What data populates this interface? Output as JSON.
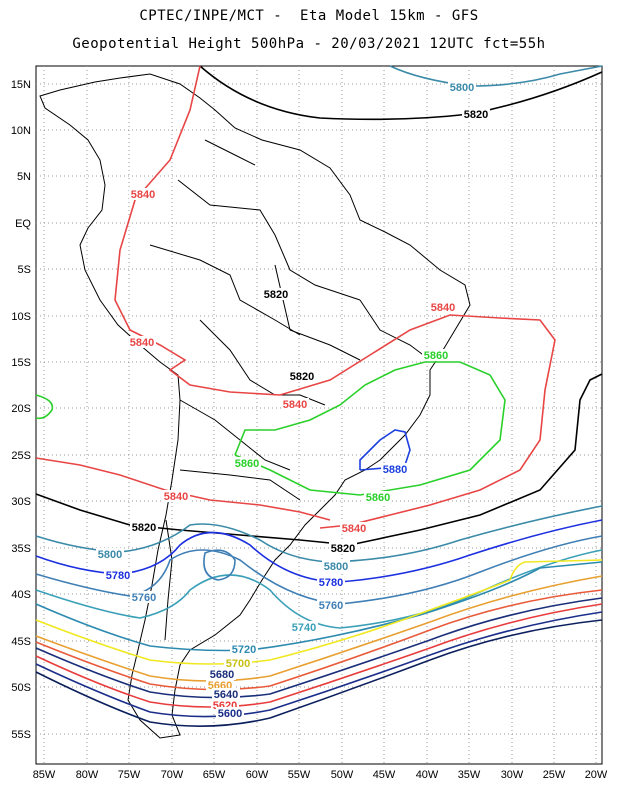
{
  "header": {
    "line1": "CPTEC/INPE/MCT -  Eta Model 15km - GFS",
    "line2": "Geopotential Height 500hPa - 20/03/2021 12UTC fct=55h"
  },
  "map": {
    "lon_labels": [
      "85W",
      "80W",
      "75W",
      "70W",
      "65W",
      "60W",
      "55W",
      "50W",
      "45W",
      "40W",
      "35W",
      "30W",
      "25W",
      "20W"
    ],
    "lat_labels": [
      "15N",
      "10N",
      "5N",
      "EQ",
      "5S",
      "10S",
      "15S",
      "20S",
      "25S",
      "30S",
      "35S",
      "40S",
      "45S",
      "50S",
      "55S"
    ],
    "grid": "dotted",
    "contour_levels": [
      {
        "value": 5580,
        "color": "#0b1f5c"
      },
      {
        "value": 5600,
        "color": "#1b2f8a"
      },
      {
        "value": 5620,
        "color": "#e83c3c"
      },
      {
        "value": 5640,
        "color": "#1a2f7a"
      },
      {
        "value": 5660,
        "color": "#e85a3a"
      },
      {
        "value": 5680,
        "color": "#e8a030"
      },
      {
        "value": 5700,
        "color": "#f0e820"
      },
      {
        "value": 5720,
        "color": "#2c8ab0"
      },
      {
        "value": 5740,
        "color": "#3aa0b8"
      },
      {
        "value": 5760,
        "color": "#3f7fb5"
      },
      {
        "value": 5780,
        "color": "#1c30e0"
      },
      {
        "value": 5800,
        "color": "#3a8aa8"
      },
      {
        "value": 5820,
        "color": "#000000"
      },
      {
        "value": 5840,
        "color": "#e84545"
      },
      {
        "value": 5860,
        "color": "#2ad02a"
      },
      {
        "value": 5880,
        "color": "#1c40e0"
      }
    ],
    "contour_labels": [
      {
        "text": "5800",
        "color": "#3a8aa8"
      },
      {
        "text": "5820",
        "color": "#000000"
      },
      {
        "text": "5840",
        "color": "#e84545"
      },
      {
        "text": "5840",
        "color": "#e84545"
      },
      {
        "text": "5840",
        "color": "#e84545"
      },
      {
        "text": "5820",
        "color": "#000000"
      },
      {
        "text": "5820",
        "color": "#000000"
      },
      {
        "text": "5860",
        "color": "#2ad02a"
      },
      {
        "text": "5840",
        "color": "#e84545"
      },
      {
        "text": "5860",
        "color": "#2ad02a"
      },
      {
        "text": "5880",
        "color": "#1c40e0"
      },
      {
        "text": "5860",
        "color": "#2ad02a"
      },
      {
        "text": "5840",
        "color": "#e84545"
      },
      {
        "text": "5840",
        "color": "#e84545"
      },
      {
        "text": "5820",
        "color": "#000000"
      },
      {
        "text": "5820",
        "color": "#000000"
      },
      {
        "text": "5800",
        "color": "#3a8aa8"
      },
      {
        "text": "5780",
        "color": "#1c30e0"
      },
      {
        "text": "5800",
        "color": "#3a8aa8"
      },
      {
        "text": "5780",
        "color": "#1c30e0"
      },
      {
        "text": "5760",
        "color": "#3f7fb5"
      },
      {
        "text": "5760",
        "color": "#3f7fb5"
      },
      {
        "text": "5740",
        "color": "#3aa0b8"
      },
      {
        "text": "5720",
        "color": "#2c8ab0"
      },
      {
        "text": "5700",
        "color": "#c8c010"
      },
      {
        "text": "5680",
        "color": "#1a2f7a"
      },
      {
        "text": "5660",
        "color": "#e8a030"
      },
      {
        "text": "5640",
        "color": "#1a2f7a"
      },
      {
        "text": "5620",
        "color": "#e83c3c"
      },
      {
        "text": "5600",
        "color": "#1b2f8a"
      }
    ]
  }
}
